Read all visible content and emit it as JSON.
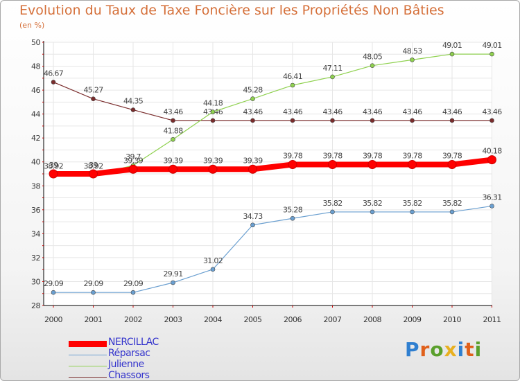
{
  "chart_data": {
    "type": "line",
    "title": "Evolution du Taux de Taxe Foncière sur les Propriétés Non Bâties",
    "subtitle": "(en %)",
    "ylim": [
      28,
      50
    ],
    "yticks": [
      "28",
      "30",
      "32",
      "34",
      "36",
      "38",
      "40",
      "42",
      "44",
      "46",
      "48",
      "50"
    ],
    "categories": [
      "2000",
      "2001",
      "2002",
      "2003",
      "2004",
      "2005",
      "2006",
      "2007",
      "2008",
      "2009",
      "2010",
      "2011"
    ],
    "grid": true,
    "legend_position": "bottom-left",
    "series": [
      {
        "name": "Chassors",
        "color": "#7a2c2c",
        "values": [
          46.67,
          45.27,
          44.35,
          43.46,
          43.46,
          43.46,
          43.46,
          43.46,
          43.46,
          43.46,
          43.46,
          43.46
        ],
        "labels": [
          "46.67",
          "45.27",
          "44.35",
          "43.46",
          "43.46",
          "43.46",
          "43.46",
          "43.46",
          "43.46",
          "43.46",
          "43.46",
          "43.46"
        ]
      },
      {
        "name": "Julienne",
        "color": "#8fd14f",
        "values": [
          38.92,
          38.92,
          39.7,
          41.88,
          44.18,
          45.28,
          46.41,
          47.11,
          48.05,
          48.53,
          49.01,
          49.01
        ],
        "labels": [
          "38.92",
          "38.92",
          "39.7",
          "41.88",
          "44.18",
          "45.28",
          "46.41",
          "47.11",
          "48.05",
          "48.53",
          "49.01",
          "49.01"
        ]
      },
      {
        "name": "Réparsac",
        "color": "#6a9fd0",
        "values": [
          29.09,
          29.09,
          29.09,
          29.91,
          31.02,
          34.73,
          35.28,
          35.82,
          35.82,
          35.82,
          35.82,
          36.31
        ],
        "labels": [
          "29.09",
          "29.09",
          "29.09",
          "29.91",
          "31.02",
          "34.73",
          "35.28",
          "35.82",
          "35.82",
          "35.82",
          "35.82",
          "36.31"
        ]
      },
      {
        "name": "NERCILLAC",
        "color": "#ff0000",
        "values": [
          39,
          39,
          39.39,
          39.39,
          39.39,
          39.39,
          39.78,
          39.78,
          39.78,
          39.78,
          39.78,
          40.18
        ],
        "labels": [
          "39",
          "39",
          "39.39",
          "39.39",
          "39.39",
          "39.39",
          "39.78",
          "39.78",
          "39.78",
          "39.78",
          "39.78",
          "40.18"
        ]
      }
    ],
    "legend_order": [
      "NERCILLAC",
      "Réparsac",
      "Julienne",
      "Chassors"
    ]
  },
  "logo": {
    "letters": [
      "P",
      "r",
      "o",
      "x",
      "i",
      "t",
      "i"
    ],
    "colors": [
      "#2f7fd0",
      "#e0601a",
      "#5aa02c",
      "#e8b020",
      "#2f7fd0",
      "#e0601a",
      "#5aa02c"
    ]
  }
}
